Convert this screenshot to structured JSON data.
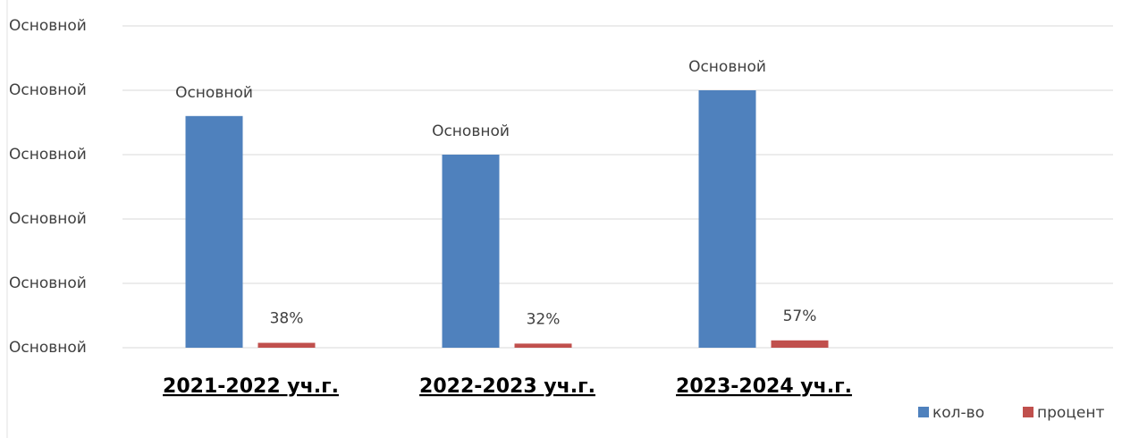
{
  "chart_data": {
    "type": "bar",
    "categories": [
      "2021-2022 уч.г.",
      "2022-2023 уч.г.",
      "2023-2024 уч.г."
    ],
    "series": [
      {
        "name": "кол-во",
        "color": "#4f81bd",
        "values": [
          18,
          15,
          20
        ],
        "value_labels": [
          "Основной",
          "Основной",
          "Основной"
        ]
      },
      {
        "name": "процент",
        "color": "#c0504d",
        "values": [
          0.38,
          0.32,
          0.57
        ],
        "value_labels": [
          "38%",
          "32%",
          "57%"
        ]
      }
    ],
    "ylim": [
      0,
      25
    ],
    "yticks": [
      {
        "value": 0,
        "label": "Основной"
      },
      {
        "value": 5,
        "label": "Основной"
      },
      {
        "value": 10,
        "label": "Основной"
      },
      {
        "value": 15,
        "label": "Основной"
      },
      {
        "value": 20,
        "label": "Основной"
      },
      {
        "value": 25,
        "label": "Основной"
      }
    ],
    "grid": true,
    "legend": "bottom-right"
  }
}
